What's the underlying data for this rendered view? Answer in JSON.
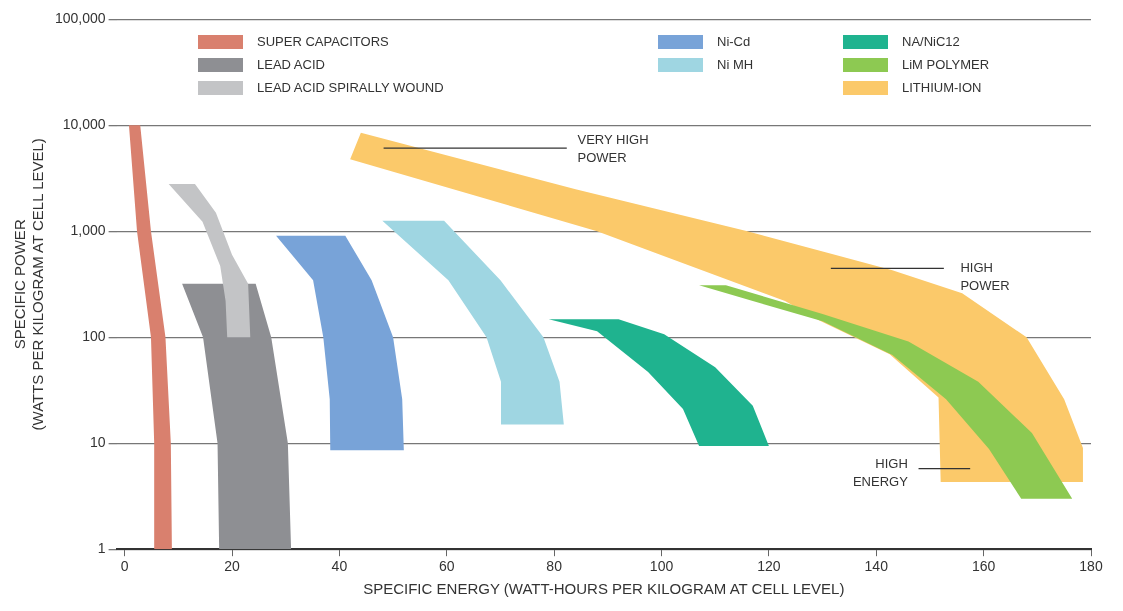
{
  "chart_data": {
    "type": "area",
    "xlabel": "SPECIFIC ENERGY (WATT-HOURS PER KILOGRAM AT CELL LEVEL)",
    "ylabel": "SPECIFIC POWER\n(WATTS PER KILOGRAM AT CELL LEVEL)",
    "log": "y",
    "grid": "y",
    "legend": "top",
    "xlim": [
      -1.5,
      180
    ],
    "xticks": [
      0,
      20,
      40,
      60,
      80,
      100,
      120,
      140,
      160,
      180
    ],
    "ylim": [
      1,
      100000
    ],
    "yticks": [
      1,
      10,
      100,
      {
        "value": 1000,
        "label": "1,000"
      },
      {
        "value": 10000,
        "label": "10,000"
      },
      {
        "value": 100000,
        "label": "100,000"
      }
    ],
    "series": [
      {
        "name": "SUPER CAPACITORS",
        "color": "#d9806e",
        "x": [
          0.8,
          2.9,
          4.9,
          7.6,
          8.6,
          8.8,
          5.6,
          5.5,
          4.9,
          2.3
        ],
        "values": [
          10000,
          10000,
          1000,
          100,
          10,
          1,
          1,
          10,
          100,
          1000
        ]
      },
      {
        "name": "LEAD ACID",
        "color": "#8e8f93",
        "x": [
          10.7,
          24.4,
          27.3,
          30.4,
          31,
          17.6,
          17.3,
          14.6
        ],
        "values": [
          320,
          320,
          100,
          10,
          1,
          1,
          10,
          100
        ]
      },
      {
        "name": "LEAD ACID SPIRALLY WOUND",
        "color": "#c3c4c6",
        "x": [
          8.2,
          13.1,
          17,
          20,
          23,
          23.4,
          19.1,
          18.8,
          17.8,
          14.5
        ],
        "values": [
          2800,
          2800,
          1500,
          600,
          320,
          100,
          100,
          220,
          470,
          1230
        ]
      },
      {
        "name": "Ni-Cd",
        "color": "#78a3d8",
        "x": [
          28.2,
          41.1,
          46,
          50,
          51.7,
          52,
          38.3,
          38.2,
          37,
          35.1
        ],
        "values": [
          910,
          910,
          345,
          100,
          26,
          8.6,
          8.6,
          26,
          100,
          345
        ]
      },
      {
        "name": "Ni MH",
        "color": "#9fd6e2",
        "x": [
          48,
          59.5,
          70,
          78,
          81,
          81.8,
          70.1,
          70.1,
          67.4,
          60.3
        ],
        "values": [
          1260,
          1260,
          345,
          100,
          38,
          15,
          15,
          38,
          100,
          345
        ]
      },
      {
        "name": "NA/NiC12",
        "color": "#1fb38f",
        "x": [
          79,
          92,
          100.5,
          110,
          117,
          120,
          107,
          104,
          97.5,
          88
        ],
        "values": [
          148,
          148,
          107,
          52,
          22.6,
          9.4,
          9.4,
          21,
          47,
          114
        ]
      },
      {
        "name": "LITHIUM-ION",
        "color": "#fbc96a",
        "x": [
          44,
          84,
          116,
          143,
          156,
          168,
          175,
          178.5,
          178.5,
          152,
          151.6,
          142.5,
          129.5,
          123,
          88,
          42
        ],
        "values": [
          8500,
          2500,
          1000,
          430,
          260,
          100,
          26,
          9,
          4.3,
          4.3,
          27,
          69,
          143,
          220,
          1000,
          4800
        ]
      },
      {
        "name": "LiM POLYMER",
        "color": "#8dc952",
        "x": [
          107,
          112,
          130,
          146,
          159,
          169,
          176.5,
          167,
          161,
          153,
          143,
          130,
          117
        ],
        "values": [
          310,
          310,
          166,
          91,
          38,
          12.5,
          3,
          3,
          8.8,
          26,
          68,
          142,
          220
        ]
      }
    ],
    "annotations": [
      "VERY HIGH POWER",
      "HIGH POWER",
      "HIGH ENERGY"
    ]
  }
}
